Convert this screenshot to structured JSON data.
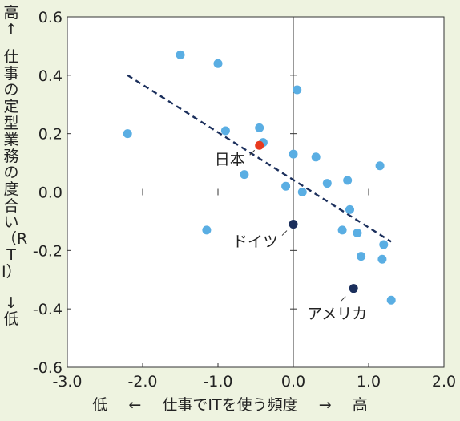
{
  "colors": {
    "background": "#eef3e0",
    "plot_background": "#ffffff",
    "point": "#5aaee3",
    "japan": "#e83a1e",
    "highlight_dark": "#1b2f5c",
    "trend_line": "#1b2f5c"
  },
  "axis_labels": {
    "y_high": "高↑",
    "y_main": "仕事の定型業務の度合い（RTI）",
    "y_low": "↓低",
    "x_low": "低",
    "x_arrow_left": "←",
    "x_main": "仕事でITを使う頻度",
    "x_arrow_right": "→",
    "x_high": "高"
  },
  "chart_data": {
    "type": "scatter",
    "title": "",
    "xlabel": "低 ← 仕事でITを使う頻度 → 高",
    "ylabel": "高↑ 仕事の定型業務の度合い（RTI） ↓低",
    "xlim": [
      -3.0,
      2.0
    ],
    "ylim": [
      -0.6,
      0.6
    ],
    "xticks": [
      "-3.0",
      "-2.0",
      "-1.0",
      "0.0",
      "1.0",
      "2.0"
    ],
    "yticks": [
      "0.6",
      "0.4",
      "0.2",
      "0.0",
      "-0.2",
      "-0.4",
      "-0.6"
    ],
    "grid": false,
    "reference_lines": {
      "x": 0.0,
      "y": 0.0
    },
    "trend_line": {
      "x": [
        -2.2,
        1.3
      ],
      "y": [
        0.4,
        -0.17
      ],
      "style": "dashed"
    },
    "points": [
      {
        "x": -2.2,
        "y": 0.2
      },
      {
        "x": -1.5,
        "y": 0.47
      },
      {
        "x": -1.0,
        "y": 0.44
      },
      {
        "x": -0.9,
        "y": 0.21
      },
      {
        "x": -0.45,
        "y": 0.22
      },
      {
        "x": -0.4,
        "y": 0.17
      },
      {
        "x": -0.65,
        "y": 0.06
      },
      {
        "x": 0.05,
        "y": 0.35
      },
      {
        "x": 0.0,
        "y": 0.13
      },
      {
        "x": 0.3,
        "y": 0.12
      },
      {
        "x": 0.45,
        "y": 0.03
      },
      {
        "x": 0.72,
        "y": 0.04
      },
      {
        "x": 1.15,
        "y": 0.09
      },
      {
        "x": -0.1,
        "y": 0.02
      },
      {
        "x": 0.12,
        "y": 0.0
      },
      {
        "x": 0.75,
        "y": -0.06
      },
      {
        "x": -1.15,
        "y": -0.13
      },
      {
        "x": 0.65,
        "y": -0.13
      },
      {
        "x": 0.85,
        "y": -0.14
      },
      {
        "x": 1.2,
        "y": -0.18
      },
      {
        "x": 0.9,
        "y": -0.22
      },
      {
        "x": 1.18,
        "y": -0.23
      },
      {
        "x": 1.3,
        "y": -0.37
      }
    ],
    "highlights": [
      {
        "label": "日本",
        "x": -0.45,
        "y": 0.16,
        "color": "#e83a1e"
      },
      {
        "label": "ドイツ",
        "x": 0.0,
        "y": -0.11,
        "color": "#1b2f5c"
      },
      {
        "label": "アメリカ",
        "x": 0.8,
        "y": -0.33,
        "color": "#1b2f5c"
      }
    ]
  }
}
